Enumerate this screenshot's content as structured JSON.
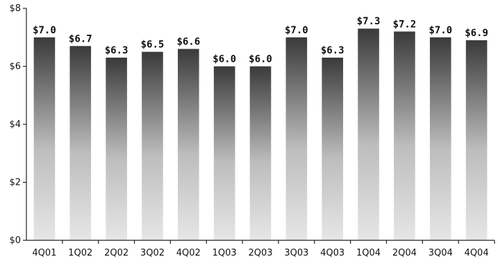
{
  "chart_data": {
    "type": "bar",
    "title": "",
    "xlabel": "",
    "ylabel": "",
    "categories": [
      "4Q01",
      "1Q02",
      "2Q02",
      "3Q02",
      "4Q02",
      "1Q03",
      "2Q03",
      "3Q03",
      "4Q03",
      "1Q04",
      "2Q04",
      "3Q04",
      "4Q04"
    ],
    "values": [
      7.0,
      6.7,
      6.3,
      6.5,
      6.6,
      6.0,
      6.0,
      7.0,
      6.3,
      7.3,
      7.2,
      7.0,
      6.9
    ],
    "data_labels": [
      "$7.0",
      "$6.7",
      "$6.3",
      "$6.5",
      "$6.6",
      "$6.0",
      "$6.0",
      "$7.0",
      "$6.3",
      "$7.3",
      "$7.2",
      "$7.0",
      "$6.9"
    ],
    "yticks": [
      0,
      2,
      4,
      6,
      8
    ],
    "ytick_labels": [
      "$0",
      "$2",
      "$4",
      "$6",
      "$8"
    ],
    "ylim": [
      0,
      8
    ],
    "grid": false,
    "legend": "none",
    "bar_fill": "gradient from light gray (bottom) to dark gray (top)",
    "colors": {
      "bar_top": "#3a3a3a",
      "bar_bottom": "#e6e6e6",
      "axis": "#222222",
      "text": "#111111"
    }
  }
}
